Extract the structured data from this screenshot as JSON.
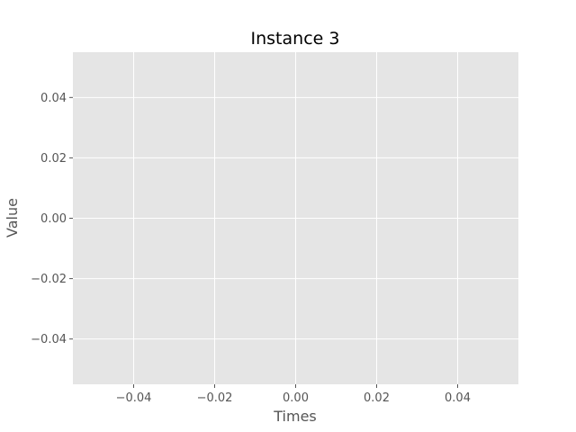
{
  "chart_data": {
    "type": "line",
    "title": "Instance 3",
    "xlabel": "Times",
    "ylabel": "Value",
    "xlim": [
      -0.055,
      0.055
    ],
    "ylim": [
      -0.055,
      0.055
    ],
    "x_ticks": [
      -0.04,
      -0.02,
      0.0,
      0.02,
      0.04
    ],
    "x_tick_labels": [
      "−0.04",
      "−0.02",
      "0.00",
      "0.02",
      "0.04"
    ],
    "y_ticks": [
      -0.04,
      -0.02,
      0.0,
      0.02,
      0.04
    ],
    "y_tick_labels": [
      "−0.04",
      "−0.02",
      "0.00",
      "0.02",
      "0.04"
    ],
    "grid": true,
    "series": [],
    "colors": {
      "plot_background": "#E5E5E5",
      "grid": "#FFFFFF",
      "tick_text": "#555555",
      "title_text": "#000000"
    }
  }
}
